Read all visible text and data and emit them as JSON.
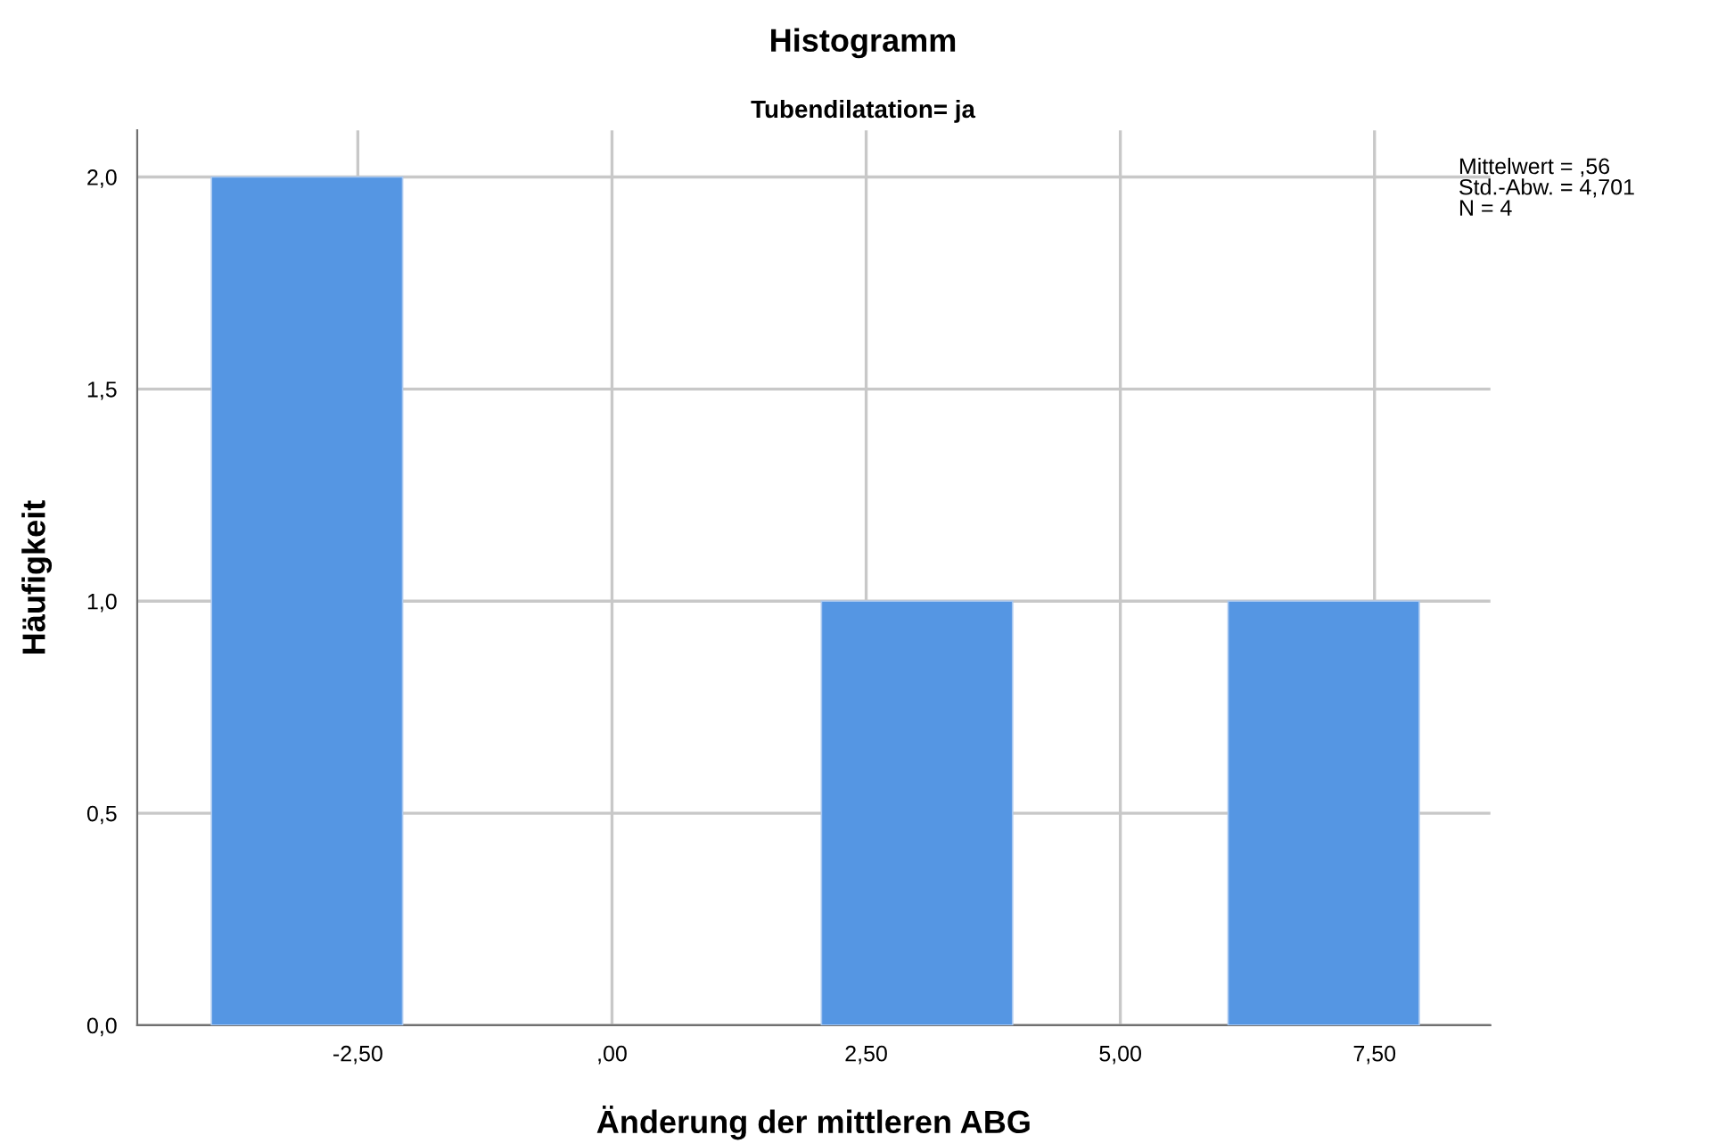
{
  "chart_data": {
    "type": "histogram",
    "title": "Histogramm",
    "subtitle": "Tubendilatation= ja",
    "xlabel": "Änderung der mittleren ABG",
    "ylabel": "Häufigkeit",
    "bins": [
      -3.94,
      -2.06,
      2.06,
      3.94,
      6.06,
      7.94
    ],
    "values": [
      2,
      0,
      1,
      0,
      1
    ],
    "color": "#5596e3",
    "xlim": [
      -4.67,
      8.64
    ],
    "ylim": [
      0,
      2.11
    ],
    "xticks": [
      {
        "value": -2.5,
        "label": "-2,50"
      },
      {
        "value": 0,
        "label": ",00"
      },
      {
        "value": 2.5,
        "label": "2,50"
      },
      {
        "value": 5,
        "label": "5,00"
      },
      {
        "value": 7.5,
        "label": "7,50"
      }
    ],
    "yticks": [
      {
        "value": 0,
        "label": "0,0"
      },
      {
        "value": 0.5,
        "label": "0,5"
      },
      {
        "value": 1,
        "label": "1,0"
      },
      {
        "value": 1.5,
        "label": "1,5"
      },
      {
        "value": 2,
        "label": "2,0"
      }
    ],
    "grid": true,
    "annotations": [
      "Mittelwert = ,56\nStd.-Abw. = 4,701\nN = 4"
    ]
  }
}
